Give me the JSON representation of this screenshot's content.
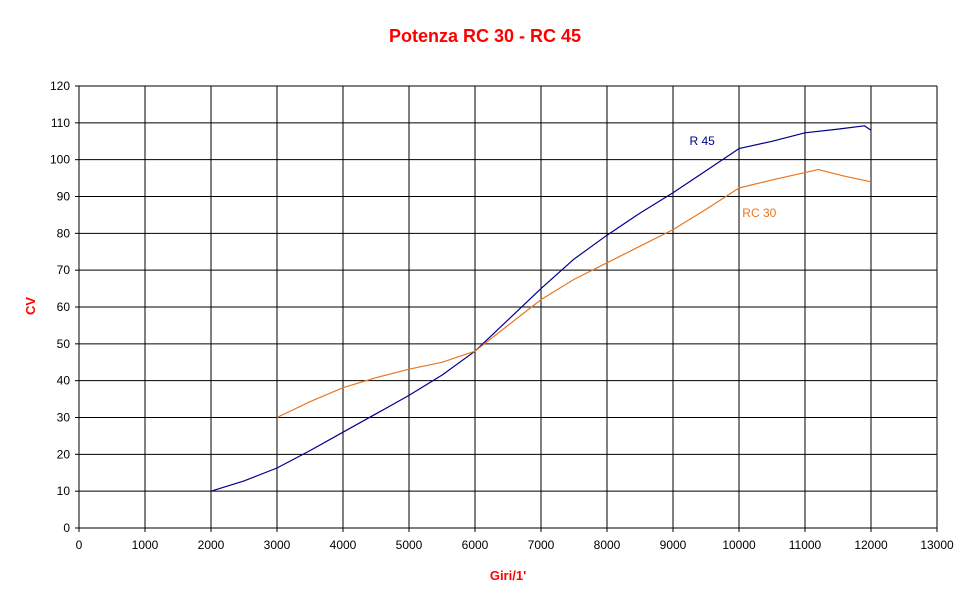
{
  "chart_data": {
    "type": "line",
    "title": "Potenza RC 30 - RC 45",
    "xlabel": "Giri/1'",
    "ylabel": "CV",
    "xlim": [
      0,
      13000
    ],
    "ylim": [
      0,
      120
    ],
    "x_ticks": [
      "0",
      "1000",
      "2000",
      "3000",
      "4000",
      "5000",
      "6000",
      "7000",
      "8000",
      "9000",
      "10000",
      "11000",
      "12000",
      "13000"
    ],
    "y_ticks": [
      "0",
      "10",
      "20",
      "30",
      "40",
      "50",
      "60",
      "70",
      "80",
      "90",
      "100",
      "110",
      "120"
    ],
    "grid": true,
    "series": [
      {
        "name": "R 45",
        "color": "#00008B",
        "points": [
          [
            2000,
            10
          ],
          [
            2500,
            12.8
          ],
          [
            3000,
            16.3
          ],
          [
            3500,
            21
          ],
          [
            4000,
            26
          ],
          [
            4500,
            31
          ],
          [
            5000,
            36
          ],
          [
            5500,
            41.5
          ],
          [
            6000,
            48
          ],
          [
            6500,
            56.5
          ],
          [
            7000,
            65
          ],
          [
            7500,
            73
          ],
          [
            8000,
            79.5
          ],
          [
            8500,
            85.5
          ],
          [
            9000,
            91
          ],
          [
            9500,
            97
          ],
          [
            10000,
            103
          ],
          [
            10500,
            105
          ],
          [
            11000,
            107.3
          ],
          [
            11500,
            108.3
          ],
          [
            11900,
            109.2
          ],
          [
            12000,
            108
          ]
        ]
      },
      {
        "name": "RC 30",
        "color": "#E87722",
        "points": [
          [
            3000,
            30
          ],
          [
            3500,
            34.3
          ],
          [
            4000,
            38.1
          ],
          [
            4500,
            40.8
          ],
          [
            5000,
            43.1
          ],
          [
            5500,
            45
          ],
          [
            6000,
            48
          ],
          [
            6500,
            55
          ],
          [
            7000,
            62
          ],
          [
            7500,
            67.5
          ],
          [
            8000,
            72
          ],
          [
            8500,
            76.5
          ],
          [
            9000,
            81
          ],
          [
            9500,
            86.5
          ],
          [
            10000,
            92.3
          ],
          [
            10500,
            94.5
          ],
          [
            11000,
            96.5
          ],
          [
            11200,
            97.3
          ],
          [
            11600,
            95.5
          ],
          [
            12000,
            94
          ]
        ]
      }
    ]
  }
}
